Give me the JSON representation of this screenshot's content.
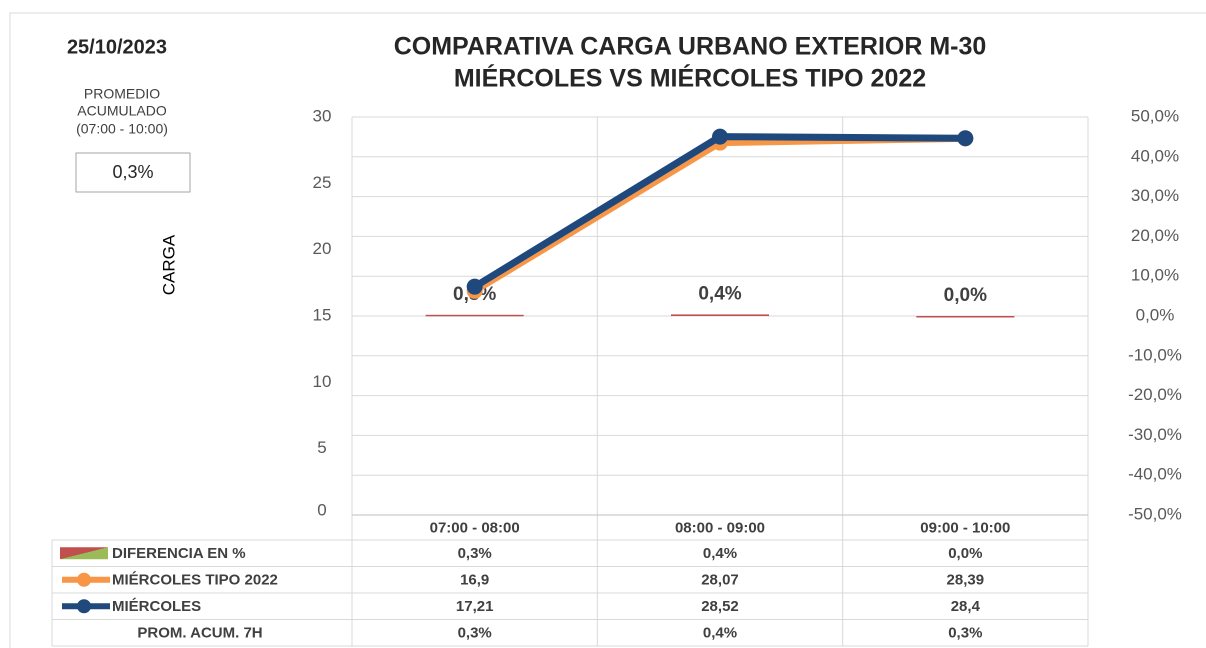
{
  "chart_data": {
    "type": "line",
    "title": [
      "COMPARATIVA CARGA URBANO EXTERIOR M-30",
      "MIÉRCOLES VS MIÉRCOLES TIPO 2022"
    ],
    "date": "25/10/2023",
    "summary_label": [
      "PROMEDIO",
      "ACUMULADO",
      "(07:00 - 10:00)"
    ],
    "summary_value": "0,3%",
    "ylabel": "CARGA",
    "categories": [
      "07:00 - 08:00",
      "08:00 - 09:00",
      "09:00 - 10:00"
    ],
    "ylim": [
      0,
      30
    ],
    "yticks": [
      0,
      5,
      10,
      15,
      20,
      25,
      30
    ],
    "y2lim": [
      -50,
      50
    ],
    "y2ticks": [
      {
        "value": -50,
        "label": "-50,0%"
      },
      {
        "value": -40,
        "label": "-40,0%"
      },
      {
        "value": -30,
        "label": "-30,0%"
      },
      {
        "value": -20,
        "label": "-20,0%"
      },
      {
        "value": -10,
        "label": "-10,0%"
      },
      {
        "value": 0,
        "label": "0,0%"
      },
      {
        "value": 10,
        "label": "10,0%"
      },
      {
        "value": 20,
        "label": "20,0%"
      },
      {
        "value": 30,
        "label": "30,0%"
      },
      {
        "value": 40,
        "label": "40,0%"
      },
      {
        "value": 50,
        "label": "50,0%"
      }
    ],
    "grid": true,
    "series": [
      {
        "name": "DIFERENCIA EN %",
        "type": "bar",
        "axis": "y2",
        "color": "#c0504d",
        "values": [
          0.3,
          0.4,
          0.0
        ],
        "value_labels": [
          "0,3%",
          "0,4%",
          "0,0%"
        ]
      },
      {
        "name": "MIÉRCOLES TIPO 2022",
        "type": "line",
        "color": "#f79646",
        "values": [
          16.9,
          28.07,
          28.39
        ],
        "value_labels": [
          "16,9",
          "28,07",
          "28,39"
        ]
      },
      {
        "name": "MIÉRCOLES",
        "type": "line",
        "color": "#1f497d",
        "values": [
          17.21,
          28.52,
          28.4
        ],
        "value_labels": [
          "17,21",
          "28,52",
          "28,4"
        ]
      },
      {
        "name": "PROM. ACUM. 7H",
        "type": "table",
        "values": [
          0.3,
          0.4,
          0.3
        ],
        "value_labels": [
          "0,3%",
          "0,4%",
          "0,3%"
        ]
      }
    ]
  }
}
